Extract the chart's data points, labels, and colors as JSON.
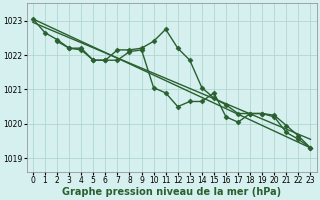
{
  "xlabel": "Graphe pression niveau de la mer (hPa)",
  "ylim": [
    1018.6,
    1023.5
  ],
  "xlim": [
    -0.5,
    23.5
  ],
  "yticks": [
    1019,
    1020,
    1021,
    1022,
    1023
  ],
  "xticks": [
    0,
    1,
    2,
    3,
    4,
    5,
    6,
    7,
    8,
    9,
    10,
    11,
    12,
    13,
    14,
    15,
    16,
    17,
    18,
    19,
    20,
    21,
    22,
    23
  ],
  "background_color": "#d5f0ee",
  "grid_color": "#b0d8d0",
  "line_color": "#2a6030",
  "lines": [
    {
      "x": [
        0,
        1,
        2,
        3,
        4,
        5,
        6,
        7,
        8,
        9,
        10,
        11,
        12,
        13,
        14,
        15,
        16,
        17,
        18,
        19,
        20,
        21,
        22,
        23
      ],
      "y": [
        1023.05,
        1022.65,
        1022.45,
        1022.2,
        1022.2,
        1021.85,
        1021.85,
        1022.15,
        1022.15,
        1022.2,
        1022.4,
        1022.75,
        1022.2,
        1021.85,
        1021.05,
        1020.75,
        1020.55,
        1020.3,
        1020.3,
        1020.3,
        1020.25,
        1019.95,
        1019.65,
        1019.3
      ],
      "marker": true
    },
    {
      "x": [
        2,
        3,
        4,
        5,
        6,
        7,
        8,
        9,
        10,
        11,
        12,
        13,
        14,
        15,
        16,
        17,
        18,
        19,
        20,
        21,
        22,
        23
      ],
      "y": [
        1022.4,
        1022.2,
        1022.15,
        1021.85,
        1021.85,
        1021.85,
        1022.1,
        1022.15,
        1021.05,
        1020.9,
        1020.5,
        1020.65,
        1020.65,
        1020.9,
        1020.2,
        1020.05,
        1020.3,
        1020.3,
        1020.2,
        1019.75,
        1019.55,
        1019.3
      ],
      "marker": true
    },
    {
      "x": [
        0,
        23
      ],
      "y": [
        1023.05,
        1019.3
      ],
      "marker": false
    },
    {
      "x": [
        0,
        23
      ],
      "y": [
        1022.95,
        1019.55
      ],
      "marker": false
    }
  ],
  "marker_style": "D",
  "markersize": 2.5,
  "linewidth": 1.0,
  "tick_fontsize": 5.5,
  "label_fontsize": 7.0,
  "label_fontweight": "bold",
  "figsize": [
    3.2,
    2.0
  ],
  "dpi": 100
}
